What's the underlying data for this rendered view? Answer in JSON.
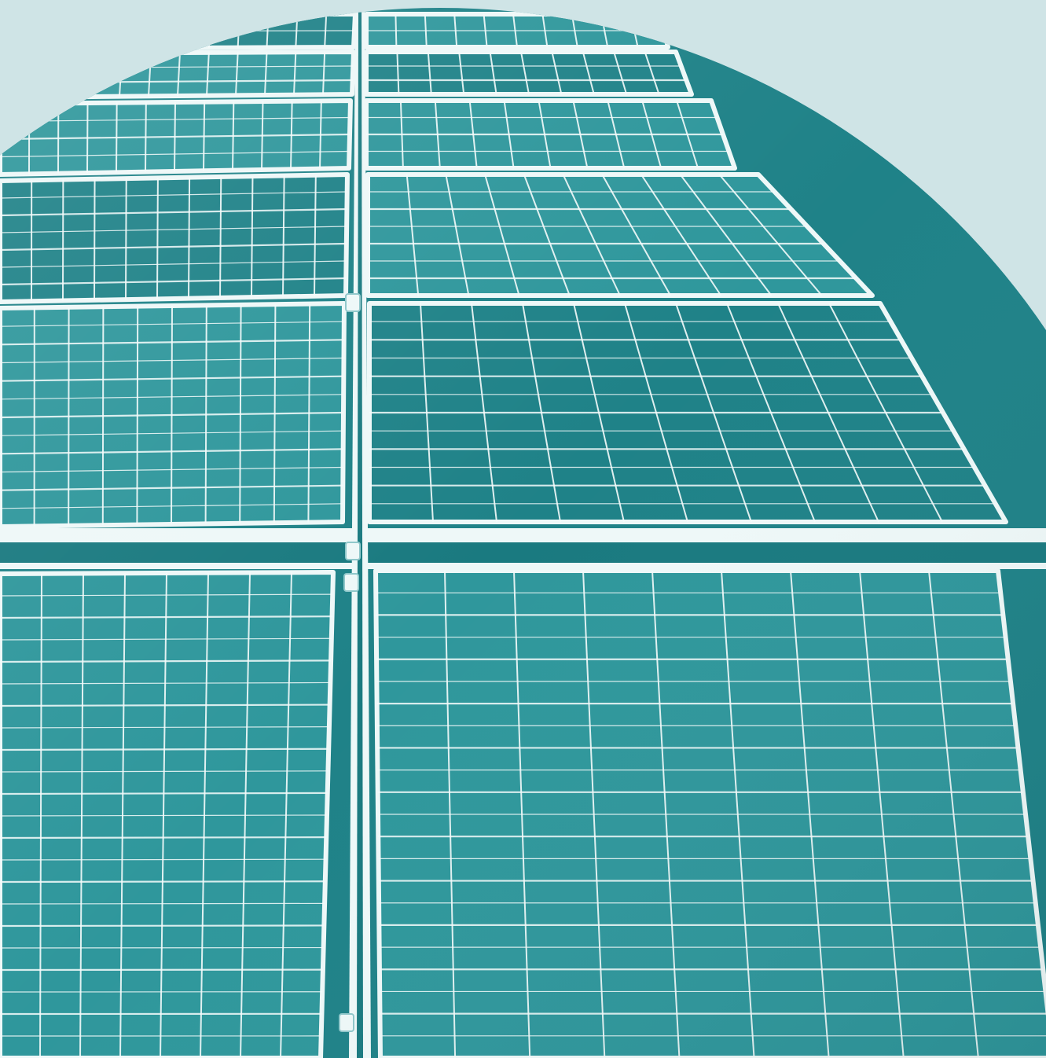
{
  "image": {
    "subject": "solar-panel-array",
    "background_color": "#cfe4e6",
    "panel_color": "#2f979c",
    "panel_shade_color": "#1f8288",
    "grid_line_color": "#f4fbfb",
    "frame_color": "#eef8f8"
  }
}
